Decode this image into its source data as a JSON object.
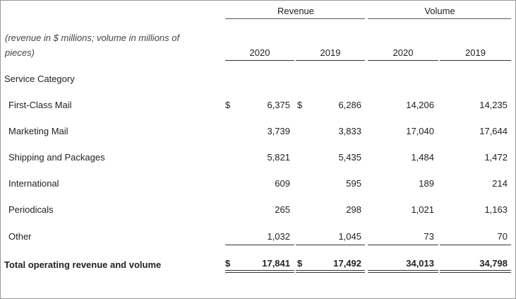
{
  "header": {
    "group_revenue": "Revenue",
    "group_volume": "Volume",
    "note_line1": "(revenue in $ millions; volume in millions of",
    "note_line2": "pieces)",
    "col_rev_2020": "2020",
    "col_rev_2019": "2019",
    "col_vol_2020": "2020",
    "col_vol_2019": "2019"
  },
  "section_label": "Service Category",
  "rows": [
    {
      "label": "First-Class Mail",
      "dollar1": "$",
      "rev2020": "6,375",
      "dollar2": "$",
      "rev2019": "6,286",
      "vol2020": "14,206",
      "vol2019": "14,235"
    },
    {
      "label": "Marketing Mail",
      "dollar1": "",
      "rev2020": "3,739",
      "dollar2": "",
      "rev2019": "3,833",
      "vol2020": "17,040",
      "vol2019": "17,644"
    },
    {
      "label": "Shipping and Packages",
      "dollar1": "",
      "rev2020": "5,821",
      "dollar2": "",
      "rev2019": "5,435",
      "vol2020": "1,484",
      "vol2019": "1,472"
    },
    {
      "label": "International",
      "dollar1": "",
      "rev2020": "609",
      "dollar2": "",
      "rev2019": "595",
      "vol2020": "189",
      "vol2019": "214"
    },
    {
      "label": "Periodicals",
      "dollar1": "",
      "rev2020": "265",
      "dollar2": "",
      "rev2019": "298",
      "vol2020": "1,021",
      "vol2019": "1,163"
    },
    {
      "label": "Other",
      "dollar1": "",
      "rev2020": "1,032",
      "dollar2": "",
      "rev2019": "1,045",
      "vol2020": "73",
      "vol2019": "70"
    }
  ],
  "total": {
    "label": "Total operating revenue and volume",
    "dollar1": "$",
    "rev2020": "17,841",
    "dollar2": "$",
    "rev2019": "17,492",
    "vol2020": "34,013",
    "vol2019": "34,798"
  }
}
